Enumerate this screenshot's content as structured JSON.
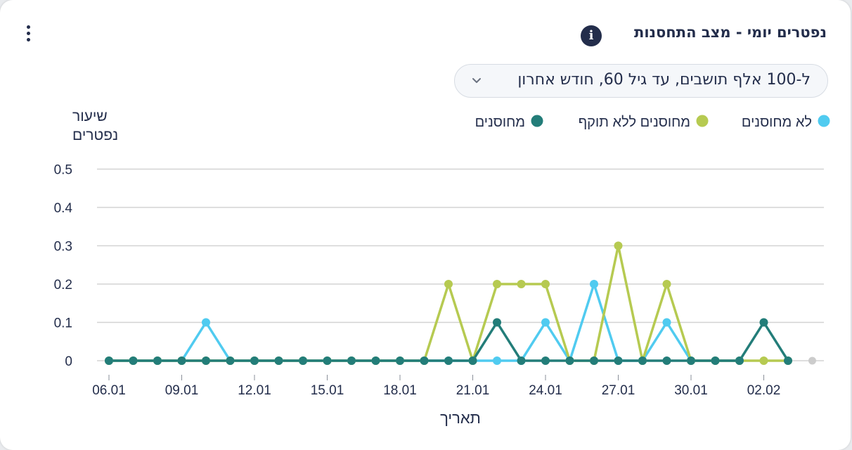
{
  "header": {
    "title": "נפטרים יומי - מצב התחסנות",
    "info_icon": "info-icon",
    "menu_icon": "kebab-menu-icon"
  },
  "filter": {
    "selected": "ל-100 אלף תושבים, עד גיל 60, חודש אחרון",
    "icon": "chevron-down-icon"
  },
  "colors": {
    "not_vaccinated": "#50cbf0",
    "expired": "#b6ca51",
    "vaccinated": "#237d79",
    "title": "#232d4b",
    "grid": "#d3d3d3",
    "future_point": "#cccccc"
  },
  "chart_data": {
    "type": "line",
    "ylabel": "שיעור נפטרים",
    "xlabel": "תאריך",
    "ylim": [
      0,
      0.5
    ],
    "yticks": [
      "0",
      "0.1",
      "0.2",
      "0.3",
      "0.4",
      "0.5"
    ],
    "grid": true,
    "legend_position": "top",
    "x": [
      "06.01",
      "07.01",
      "08.01",
      "09.01",
      "10.01",
      "11.01",
      "12.01",
      "13.01",
      "14.01",
      "15.01",
      "16.01",
      "17.01",
      "18.01",
      "19.01",
      "20.01",
      "21.01",
      "22.01",
      "23.01",
      "24.01",
      "25.01",
      "26.01",
      "27.01",
      "28.01",
      "29.01",
      "30.01",
      "31.01",
      "01.02",
      "02.02",
      "03.02",
      "04.02"
    ],
    "xticks": [
      "06.01",
      "09.01",
      "12.01",
      "15.01",
      "18.01",
      "21.01",
      "24.01",
      "27.01",
      "30.01",
      "02.02"
    ],
    "series": [
      {
        "name": "לא מחוסנים",
        "key": "not_vaccinated",
        "values": [
          0,
          0,
          0,
          0,
          0.1,
          0,
          0,
          0,
          0,
          0,
          0,
          0,
          0,
          0,
          0,
          0,
          0,
          0,
          0.1,
          0,
          0.2,
          0,
          0,
          0.1,
          0,
          0,
          0,
          null,
          null,
          null
        ]
      },
      {
        "name": "מחוסנים ללא תוקף",
        "key": "expired",
        "values": [
          0,
          0,
          0,
          0,
          0,
          0,
          0,
          0,
          0,
          0,
          0,
          0,
          0,
          0,
          0.2,
          0,
          0.2,
          0.2,
          0.2,
          0,
          0,
          0.3,
          0,
          0.2,
          0,
          0,
          0,
          0,
          0,
          null
        ]
      },
      {
        "name": "מחוסנים",
        "key": "vaccinated",
        "values": [
          0,
          0,
          0,
          0,
          0,
          0,
          0,
          0,
          0,
          0,
          0,
          0,
          0,
          0,
          0,
          0,
          0.1,
          0,
          0,
          0,
          0,
          0,
          0,
          0,
          0,
          0,
          0,
          0.1,
          0,
          null
        ]
      }
    ],
    "trailing_point": {
      "x": "04.02",
      "value": 0
    }
  }
}
